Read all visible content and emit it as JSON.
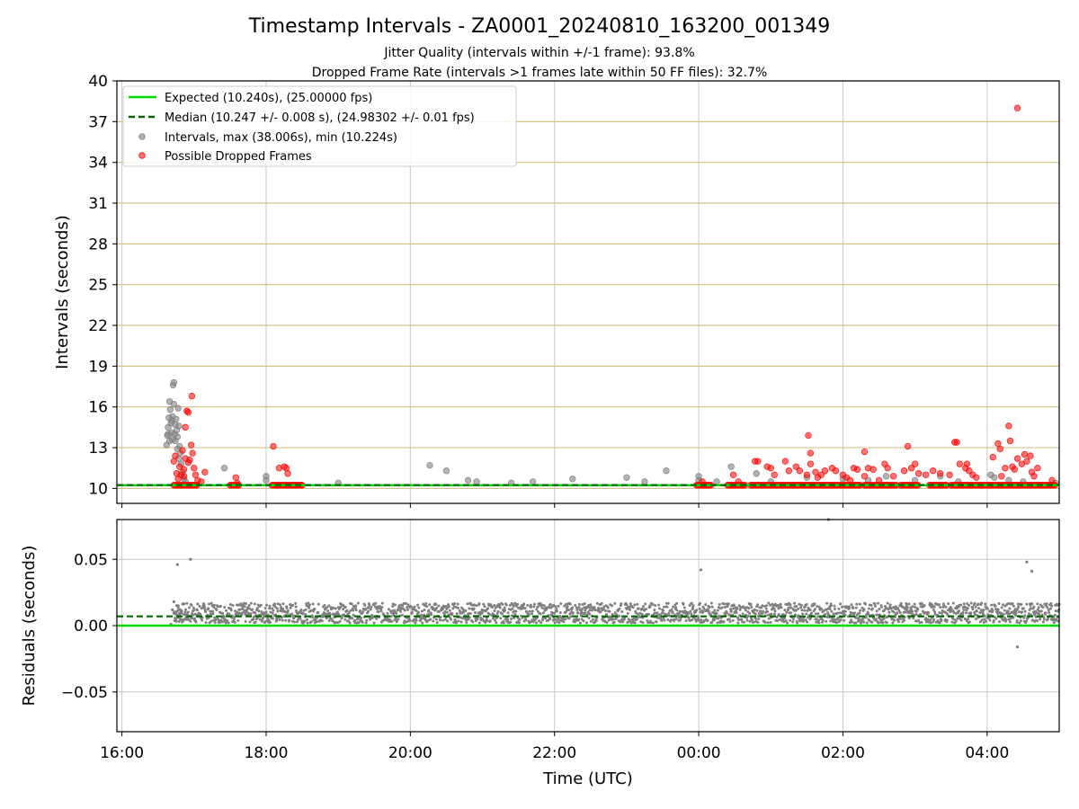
{
  "chart_data": [
    {
      "type": "scatter",
      "title": "Timestamp Intervals - ZA0001_20240810_163200_001349",
      "subtitle_lines": [
        "Jitter Quality (intervals within +/-1 frame): 93.8%",
        "Dropped Frame Rate (intervals >1 frames late within 50 FF files): 32.7%"
      ],
      "ylabel": "Intervals (seconds)",
      "xlabel": "",
      "xlim_hours": [
        15.93,
        29.0
      ],
      "ylim": [
        8.9,
        40
      ],
      "yticks": [
        10,
        13,
        16,
        19,
        22,
        25,
        28,
        31,
        34,
        37,
        40
      ],
      "ytick_labels": [
        "10",
        "13",
        "16",
        "19",
        "22",
        "25",
        "28",
        "31",
        "34",
        "37",
        "40"
      ],
      "xticks_hours": [
        16,
        18,
        20,
        22,
        24,
        26,
        28
      ],
      "grid": true,
      "legend_position": "top-left",
      "legend": [
        "Expected (10.240s), (25.00000 fps)",
        "Median (10.247 +/- 0.008 s), (24.98302 +/- 0.01 fps)",
        "Intervals, max (38.006s), min (10.224s)",
        "Possible Dropped Frames"
      ],
      "expected_interval": 10.24,
      "median_interval": 10.247,
      "series": [
        {
          "name": "Intervals, max (38.006s), min (10.224s)",
          "color": "#808080",
          "points": [
            [
              16.62,
              13.2
            ],
            [
              16.63,
              13.9
            ],
            [
              16.64,
              14.5
            ],
            [
              16.65,
              15.2
            ],
            [
              16.66,
              16.4
            ],
            [
              16.67,
              15.8
            ],
            [
              16.68,
              14.8
            ],
            [
              16.69,
              14.1
            ],
            [
              16.7,
              13.6
            ],
            [
              16.7,
              15.3
            ],
            [
              16.71,
              17.6
            ],
            [
              16.72,
              17.8
            ],
            [
              16.72,
              16.2
            ],
            [
              16.73,
              14.0
            ],
            [
              16.74,
              13.5
            ],
            [
              16.75,
              15.1
            ],
            [
              16.76,
              14.3
            ],
            [
              16.77,
              13.8
            ],
            [
              16.78,
              15.9
            ],
            [
              16.79,
              14.6
            ],
            [
              16.8,
              13.1
            ],
            [
              16.81,
              12.6
            ],
            [
              16.82,
              11.8
            ],
            [
              16.84,
              11.2
            ],
            [
              16.86,
              10.7
            ],
            [
              16.88,
              10.5
            ],
            [
              16.64,
              14.0
            ],
            [
              16.66,
              13.5
            ],
            [
              16.69,
              15.0
            ],
            [
              16.74,
              14.7
            ],
            [
              16.77,
              12.9
            ],
            [
              16.79,
              12.2
            ],
            [
              17.42,
              11.5
            ],
            [
              18.0,
              10.9
            ],
            [
              18.0,
              10.6
            ],
            [
              19.0,
              10.4
            ],
            [
              20.27,
              11.7
            ],
            [
              20.5,
              11.3
            ],
            [
              20.8,
              10.6
            ],
            [
              20.92,
              10.5
            ],
            [
              21.4,
              10.4
            ],
            [
              21.7,
              10.5
            ],
            [
              22.25,
              10.7
            ],
            [
              23.0,
              10.8
            ],
            [
              23.25,
              10.5
            ],
            [
              23.55,
              11.3
            ],
            [
              24.0,
              10.9
            ],
            [
              24.0,
              10.6
            ],
            [
              24.25,
              10.5
            ],
            [
              24.45,
              11.6
            ],
            [
              24.8,
              11.1
            ],
            [
              25.0,
              10.5
            ],
            [
              25.5,
              10.8
            ],
            [
              26.0,
              10.7
            ],
            [
              26.35,
              10.6
            ],
            [
              26.6,
              10.9
            ],
            [
              27.0,
              10.6
            ],
            [
              27.35,
              10.9
            ],
            [
              27.6,
              10.5
            ],
            [
              28.05,
              11.0
            ],
            [
              28.1,
              10.8
            ],
            [
              28.3,
              10.6
            ],
            [
              28.5,
              10.5
            ],
            [
              28.95,
              10.4
            ]
          ]
        },
        {
          "name": "Possible Dropped Frames",
          "color": "#ff0000",
          "points": [
            [
              16.72,
              12.0
            ],
            [
              16.74,
              12.4
            ],
            [
              16.76,
              11.1
            ],
            [
              16.78,
              10.7
            ],
            [
              16.8,
              11.6
            ],
            [
              16.82,
              11.0
            ],
            [
              16.84,
              12.8
            ],
            [
              16.86,
              11.4
            ],
            [
              16.88,
              14.5
            ],
            [
              16.9,
              15.7
            ],
            [
              16.92,
              15.6
            ],
            [
              16.94,
              12.1
            ],
            [
              16.96,
              13.2
            ],
            [
              16.97,
              16.8
            ],
            [
              16.98,
              12.6
            ],
            [
              17.0,
              11.5
            ],
            [
              17.02,
              11.0
            ],
            [
              17.05,
              10.6
            ],
            [
              17.1,
              10.5
            ],
            [
              16.92,
              11.9
            ],
            [
              16.86,
              10.9
            ],
            [
              16.88,
              12.2
            ],
            [
              17.15,
              11.2
            ],
            [
              17.58,
              10.8
            ],
            [
              17.6,
              10.4
            ],
            [
              18.1,
              13.1
            ],
            [
              18.18,
              11.5
            ],
            [
              18.25,
              11.6
            ],
            [
              18.3,
              11.1
            ],
            [
              18.28,
              11.5
            ],
            [
              24.05,
              10.5
            ],
            [
              24.48,
              11.0
            ],
            [
              24.55,
              10.5
            ],
            [
              24.78,
              12.0
            ],
            [
              24.82,
              12.0
            ],
            [
              24.95,
              11.6
            ],
            [
              25.0,
              11.5
            ],
            [
              25.05,
              11.0
            ],
            [
              25.2,
              12.0
            ],
            [
              25.25,
              11.3
            ],
            [
              25.35,
              11.6
            ],
            [
              25.4,
              11.3
            ],
            [
              25.5,
              11.0
            ],
            [
              25.55,
              11.8
            ],
            [
              25.62,
              11.2
            ],
            [
              25.7,
              11.0
            ],
            [
              25.75,
              11.3
            ],
            [
              25.85,
              11.5
            ],
            [
              25.9,
              11.3
            ],
            [
              26.0,
              11.0
            ],
            [
              26.05,
              10.8
            ],
            [
              26.15,
              11.5
            ],
            [
              26.2,
              11.4
            ],
            [
              26.3,
              10.9
            ],
            [
              26.35,
              11.5
            ],
            [
              26.42,
              11.4
            ],
            [
              26.5,
              10.6
            ],
            [
              26.58,
              11.8
            ],
            [
              26.62,
              11.5
            ],
            [
              26.7,
              10.9
            ],
            [
              26.85,
              11.3
            ],
            [
              26.9,
              13.1
            ],
            [
              26.95,
              11.5
            ],
            [
              27.0,
              11.8
            ],
            [
              27.05,
              11.1
            ],
            [
              27.15,
              11.0
            ],
            [
              27.25,
              11.3
            ],
            [
              27.35,
              11.1
            ],
            [
              27.55,
              13.4
            ],
            [
              27.58,
              13.4
            ],
            [
              27.62,
              11.8
            ],
            [
              27.7,
              11.5
            ],
            [
              27.72,
              11.8
            ],
            [
              27.75,
              11.3
            ],
            [
              27.8,
              11.0
            ],
            [
              27.85,
              10.8
            ],
            [
              28.08,
              12.3
            ],
            [
              28.15,
              13.3
            ],
            [
              28.18,
              12.9
            ],
            [
              28.25,
              11.5
            ],
            [
              28.3,
              14.6
            ],
            [
              28.32,
              13.5
            ],
            [
              28.35,
              11.6
            ],
            [
              28.38,
              11.4
            ],
            [
              28.42,
              12.2
            ],
            [
              28.48,
              11.8
            ],
            [
              28.52,
              12.5
            ],
            [
              28.55,
              12.0
            ],
            [
              28.6,
              12.4
            ],
            [
              28.62,
              11.2
            ],
            [
              28.65,
              10.9
            ],
            [
              28.7,
              11.5
            ],
            [
              25.52,
              13.9
            ],
            [
              25.55,
              12.6
            ],
            [
              26.3,
              12.7
            ],
            [
              28.42,
              38.0
            ],
            [
              25.65,
              10.8
            ],
            [
              26.1,
              10.6
            ],
            [
              27.48,
              11.0
            ],
            [
              28.2,
              10.9
            ],
            [
              28.9,
              10.6
            ]
          ],
          "dense_band": [
            [
              16.72,
              17.05
            ],
            [
              17.5,
              17.62
            ],
            [
              18.08,
              18.5
            ],
            [
              23.97,
              24.18
            ],
            [
              24.4,
              24.65
            ],
            [
              24.72,
              26.25
            ],
            [
              26.3,
              26.75
            ],
            [
              26.8,
              27.05
            ],
            [
              27.2,
              27.45
            ],
            [
              27.5,
              28.95
            ]
          ],
          "dense_band_value": 10.24
        }
      ]
    },
    {
      "type": "scatter",
      "ylabel": "Residuals (seconds)",
      "xlabel": "Time (UTC)",
      "xlim_hours": [
        15.93,
        29.0
      ],
      "ylim": [
        -0.08,
        0.08
      ],
      "yticks": [
        -0.05,
        0.0,
        0.05
      ],
      "ytick_labels": [
        "−0.05",
        "0.00",
        "0.05"
      ],
      "xticks_hours": [
        16,
        18,
        20,
        22,
        24,
        26,
        28
      ],
      "xtick_labels": [
        "16:00",
        "18:00",
        "20:00",
        "22:00",
        "00:00",
        "02:00",
        "04:00"
      ],
      "grid": true,
      "expected_residual": 0.0,
      "median_residual": 0.007,
      "series": [
        {
          "name": "Residuals",
          "color": "#808080",
          "band": {
            "x_range": [
              16.72,
              29.0
            ],
            "y_low": 0.002,
            "y_high": 0.017
          },
          "sparse_points": [
            [
              16.68,
              0.001
            ],
            [
              16.7,
              0.012
            ],
            [
              16.72,
              0.018
            ],
            [
              16.75,
              0.005
            ],
            [
              16.78,
              0.015
            ],
            [
              16.8,
              0.008
            ],
            [
              16.83,
              0.011
            ],
            [
              16.77,
              0.046
            ],
            [
              16.95,
              0.05
            ],
            [
              24.03,
              0.042
            ],
            [
              28.55,
              0.048
            ],
            [
              28.62,
              0.041
            ],
            [
              28.42,
              -0.016
            ],
            [
              25.8,
              0.08
            ]
          ]
        }
      ]
    }
  ],
  "colors": {
    "expected": "#00dd00",
    "median": "#006600",
    "interval_points": "#808080",
    "dropped": "#ff0000",
    "hgrid_top": "#d4c38a",
    "grid": "#c8c8c8"
  }
}
